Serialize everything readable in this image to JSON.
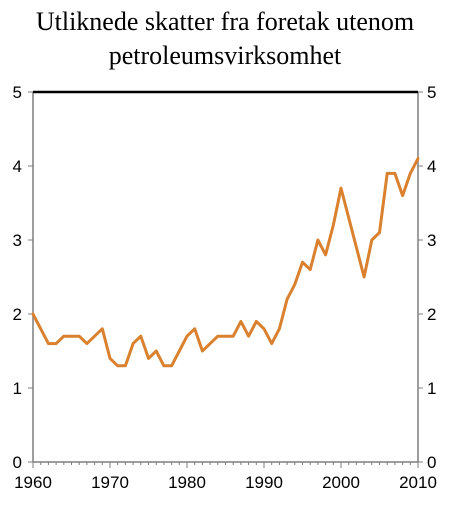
{
  "chart_data": {
    "type": "line",
    "title_lines": [
      "Utliknede skatter fra foretak utenom",
      "petroleumsvirksomhet"
    ],
    "xlabel": "",
    "ylabel": "",
    "xlim": [
      1960,
      2010
    ],
    "ylim": [
      0,
      5
    ],
    "x_ticks": [
      1960,
      1970,
      1980,
      1990,
      2000,
      2010
    ],
    "y_ticks_left": [
      0,
      1,
      2,
      3,
      4,
      5
    ],
    "y_ticks_right": [
      0,
      1,
      2,
      3,
      4,
      5
    ],
    "grid": false,
    "line_color": "#D9812E",
    "top_frame_color": "#000000",
    "axis_color": "#7f7f7f",
    "series": [
      {
        "x": [
          1960,
          1961,
          1962,
          1963,
          1964,
          1965,
          1966,
          1967,
          1968,
          1969,
          1970,
          1971,
          1972,
          1973,
          1974,
          1975,
          1976,
          1977,
          1978,
          1979,
          1980,
          1981,
          1982,
          1983,
          1984,
          1985,
          1986,
          1987,
          1988,
          1989,
          1990,
          1991,
          1992,
          1993,
          1994,
          1995,
          1996,
          1997,
          1998,
          1999,
          2000,
          2001,
          2002,
          2003,
          2004,
          2005,
          2006,
          2007,
          2008,
          2009,
          2010
        ],
        "values": [
          2.0,
          1.8,
          1.6,
          1.6,
          1.7,
          1.7,
          1.7,
          1.6,
          1.7,
          1.8,
          1.4,
          1.3,
          1.3,
          1.6,
          1.7,
          1.4,
          1.5,
          1.3,
          1.3,
          1.5,
          1.7,
          1.8,
          1.5,
          1.6,
          1.7,
          1.7,
          1.7,
          1.9,
          1.7,
          1.9,
          1.8,
          1.6,
          1.8,
          2.2,
          2.4,
          2.7,
          2.6,
          3.0,
          2.8,
          3.2,
          3.7,
          3.3,
          2.9,
          2.5,
          3.0,
          3.1,
          3.9,
          3.9,
          3.6,
          3.9,
          4.1
        ]
      }
    ]
  }
}
